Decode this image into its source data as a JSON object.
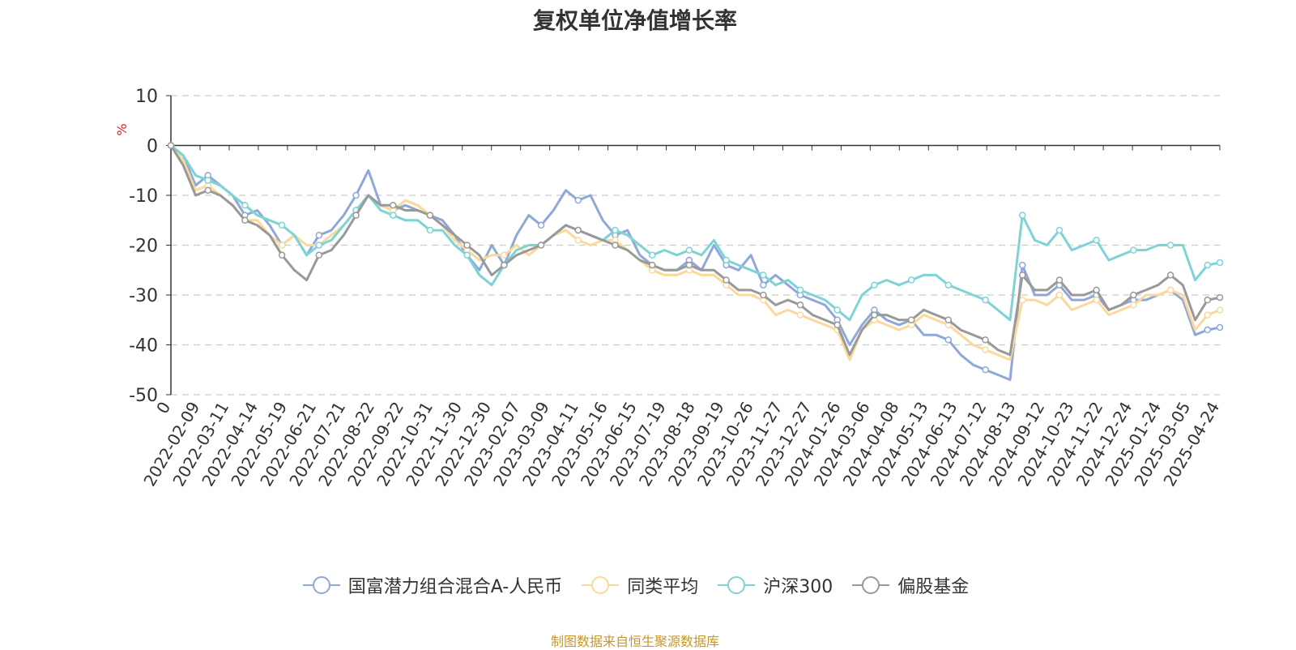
{
  "chart_data": {
    "type": "line",
    "title": "复权单位净值增长率",
    "ylabel": "%",
    "ylim": [
      -50,
      10
    ],
    "yticks": [
      10,
      0,
      -10,
      -20,
      -30,
      -40,
      -50
    ],
    "grid": true,
    "legend_position": "bottom",
    "x_start_label": "0",
    "x_tick_labels": [
      "2022-02-09",
      "2022-03-11",
      "2022-04-14",
      "2022-05-19",
      "2022-06-21",
      "2022-07-21",
      "2022-08-22",
      "2022-09-22",
      "2022-10-31",
      "2022-11-30",
      "2022-12-30",
      "2023-02-07",
      "2023-03-09",
      "2023-04-11",
      "2023-05-16",
      "2023-06-15",
      "2023-07-19",
      "2023-08-18",
      "2023-09-19",
      "2023-10-26",
      "2023-11-27",
      "2023-12-27",
      "2024-01-26",
      "2024-03-06",
      "2024-04-08",
      "2024-05-13",
      "2024-06-13",
      "2024-07-12",
      "2024-08-13",
      "2024-09-12",
      "2024-10-23",
      "2024-11-22",
      "2024-12-24",
      "2025-01-24",
      "2025-03-05",
      "2025-04-24"
    ],
    "series": [
      {
        "name": "国富潜力组合混合A-人民币",
        "color": "#8fa8d8",
        "values": [
          0,
          -2,
          -8,
          -6,
          -8,
          -10,
          -14,
          -13,
          -16,
          -20,
          -18,
          -22,
          -18,
          -17,
          -14,
          -10,
          -5,
          -12,
          -13,
          -12,
          -13,
          -14,
          -15,
          -18,
          -22,
          -25,
          -20,
          -24,
          -18,
          -14,
          -16,
          -13,
          -9,
          -11,
          -10,
          -15,
          -18,
          -17,
          -22,
          -24,
          -25,
          -25,
          -23,
          -25,
          -20,
          -24,
          -25,
          -22,
          -28,
          -26,
          -28,
          -30,
          -31,
          -32,
          -35,
          -40,
          -36,
          -33,
          -35,
          -36,
          -35,
          -38,
          -38,
          -39,
          -42,
          -44,
          -45,
          -46,
          -47,
          -24,
          -30,
          -30,
          -28,
          -31,
          -31,
          -30,
          -33,
          -32,
          -31,
          -31,
          -30,
          -29,
          -31,
          -38,
          -37,
          -36.5
        ]
      },
      {
        "name": "同类平均",
        "color": "#fcd99a",
        "values": [
          0,
          -3,
          -9,
          -8,
          -10,
          -12,
          -15,
          -15,
          -18,
          -20,
          -18,
          -20,
          -20,
          -18,
          -16,
          -13,
          -10,
          -12,
          -13,
          -11,
          -12,
          -14,
          -16,
          -19,
          -21,
          -23,
          -22,
          -22,
          -20,
          -22,
          -20,
          -18,
          -17,
          -19,
          -20,
          -19,
          -19,
          -21,
          -23,
          -25,
          -26,
          -26,
          -25,
          -26,
          -26,
          -28,
          -30,
          -30,
          -31,
          -34,
          -33,
          -34,
          -35,
          -36,
          -37,
          -43,
          -37,
          -35,
          -36,
          -37,
          -36,
          -34,
          -35,
          -36,
          -38,
          -40,
          -41,
          -42,
          -43,
          -31,
          -31,
          -32,
          -30,
          -33,
          -32,
          -31,
          -34,
          -33,
          -32,
          -30,
          -30,
          -29,
          -30,
          -37,
          -34,
          -33
        ]
      },
      {
        "name": "沪深300",
        "color": "#7dd3d5",
        "values": [
          0,
          -2,
          -6,
          -7,
          -8,
          -10,
          -12,
          -14,
          -15,
          -16,
          -18,
          -22,
          -20,
          -19,
          -16,
          -13,
          -10,
          -13,
          -14,
          -15,
          -15,
          -17,
          -17,
          -20,
          -22,
          -26,
          -28,
          -24,
          -21,
          -20,
          -20,
          -18,
          -16,
          -17,
          -18,
          -19,
          -17,
          -18,
          -20,
          -22,
          -21,
          -22,
          -21,
          -22,
          -19,
          -23,
          -24,
          -25,
          -26,
          -28,
          -27,
          -29,
          -30,
          -31,
          -33,
          -35,
          -30,
          -28,
          -27,
          -28,
          -27,
          -26,
          -26,
          -28,
          -29,
          -30,
          -31,
          -33,
          -35,
          -14,
          -19,
          -20,
          -17,
          -21,
          -20,
          -19,
          -23,
          -22,
          -21,
          -21,
          -20,
          -20,
          -20,
          -27,
          -24,
          -23.5
        ]
      },
      {
        "name": "偏股基金",
        "color": "#999999",
        "values": [
          0,
          -4,
          -10,
          -9,
          -10,
          -12,
          -15,
          -16,
          -18,
          -22,
          -25,
          -27,
          -22,
          -21,
          -18,
          -14,
          -10,
          -12,
          -12,
          -13,
          -13,
          -14,
          -16,
          -18,
          -20,
          -22,
          -26,
          -24,
          -22,
          -21,
          -20,
          -18,
          -16,
          -17,
          -18,
          -19,
          -20,
          -21,
          -23,
          -24,
          -25,
          -25,
          -24,
          -25,
          -25,
          -27,
          -29,
          -29,
          -30,
          -32,
          -31,
          -32,
          -34,
          -35,
          -36,
          -42,
          -37,
          -34,
          -34,
          -35,
          -35,
          -33,
          -34,
          -35,
          -37,
          -38,
          -39,
          -41,
          -42,
          -26,
          -29,
          -29,
          -27,
          -30,
          -30,
          -29,
          -33,
          -32,
          -30,
          -29,
          -28,
          -26,
          -28,
          -35,
          -31,
          -30.5
        ]
      }
    ]
  },
  "legend": {
    "items": [
      "国富潜力组合混合A-人民币",
      "同类平均",
      "沪深300",
      "偏股基金"
    ]
  },
  "footer": "制图数据来自恒生聚源数据库"
}
